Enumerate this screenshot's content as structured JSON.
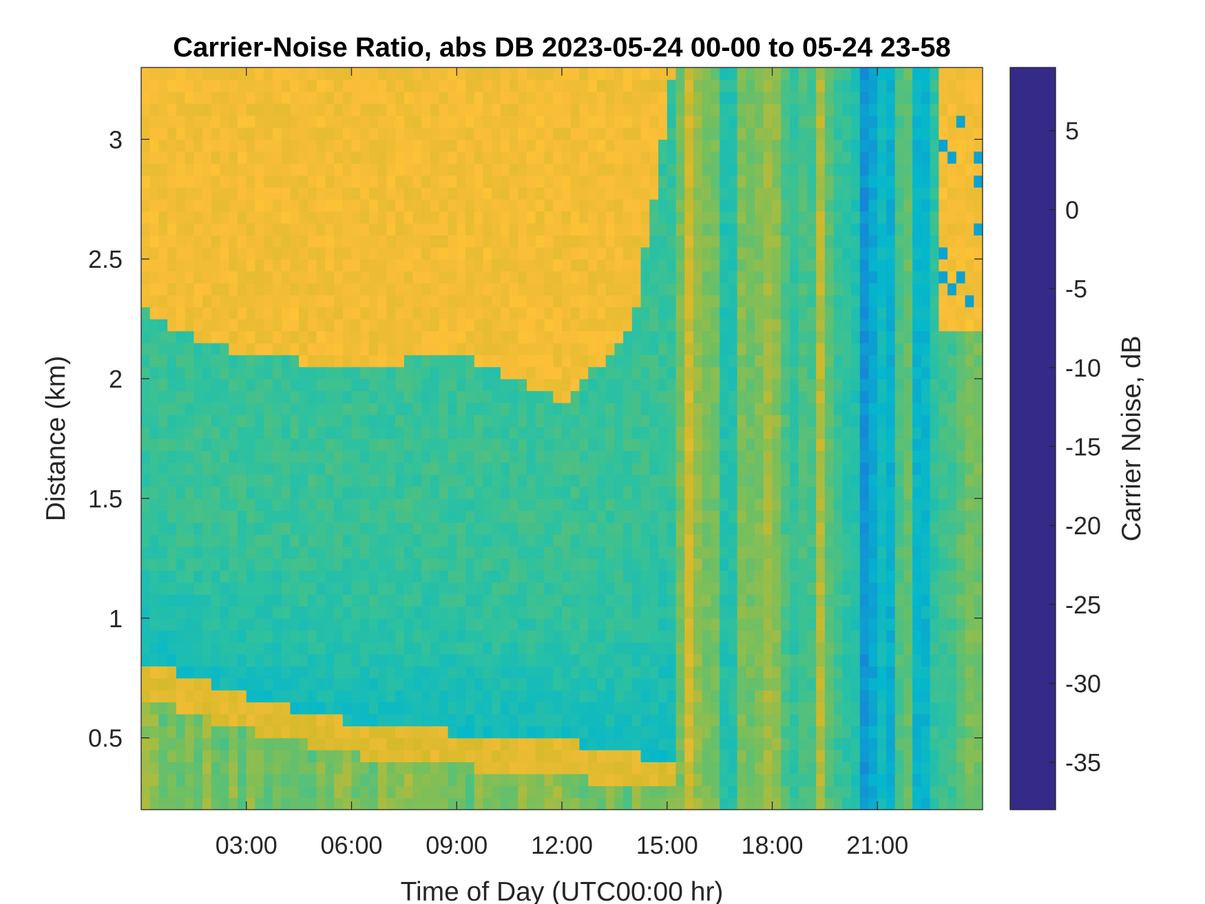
{
  "chart_data": {
    "type": "heatmap",
    "title": "Carrier-Noise Ratio, abs DB 2023-05-24 00-00 to 05-24 23-58",
    "xlabel": "Time of Day (UTC00:00 hr)",
    "ylabel": "Distance (km)",
    "colorbar_label": "Carrier Noise, dB",
    "x_range_hours": [
      0,
      24
    ],
    "xlim": [
      "00:00",
      "23:58"
    ],
    "ylim": [
      0.2,
      3.3
    ],
    "clim": [
      -38,
      9
    ],
    "x_ticks": [
      {
        "hour": 3,
        "label": "03:00"
      },
      {
        "hour": 6,
        "label": "06:00"
      },
      {
        "hour": 9,
        "label": "09:00"
      },
      {
        "hour": 12,
        "label": "12:00"
      },
      {
        "hour": 15,
        "label": "15:00"
      },
      {
        "hour": 18,
        "label": "18:00"
      },
      {
        "hour": 21,
        "label": "21:00"
      }
    ],
    "y_ticks": [
      {
        "value": 0.5,
        "label": "0.5"
      },
      {
        "value": 1,
        "label": "1"
      },
      {
        "value": 1.5,
        "label": "1.5"
      },
      {
        "value": 2,
        "label": "2"
      },
      {
        "value": 2.5,
        "label": "2.5"
      },
      {
        "value": 3,
        "label": "3"
      }
    ],
    "colorbar_ticks": [
      {
        "value": 5,
        "label": "5"
      },
      {
        "value": 0,
        "label": "0"
      },
      {
        "value": -5,
        "label": "-5"
      },
      {
        "value": -10,
        "label": "-10"
      },
      {
        "value": -15,
        "label": "-15"
      },
      {
        "value": -20,
        "label": "-20"
      },
      {
        "value": -25,
        "label": "-25"
      },
      {
        "value": -30,
        "label": "-30"
      },
      {
        "value": -35,
        "label": "-35"
      }
    ],
    "colormap": "parula (reversed: yellow = low, dark blue = high)",
    "colormap_stops": [
      {
        "value": 9,
        "color": "#352a87"
      },
      {
        "value": 1,
        "color": "#3f50e8"
      },
      {
        "value": -6,
        "color": "#1683d7"
      },
      {
        "value": -12,
        "color": "#05b7cc"
      },
      {
        "value": -17,
        "color": "#2ec19f"
      },
      {
        "value": -22,
        "color": "#76bf5d"
      },
      {
        "value": -27,
        "color": "#d1b92a"
      },
      {
        "value": -32,
        "color": "#fbbe38"
      },
      {
        "value": -38,
        "color": "#f9fb0e"
      }
    ],
    "grid": false,
    "field_approx": {
      "description_units": "hours (x), km (y), dB (value)",
      "upper_layer_top_km_by_hour": [
        [
          0,
          2.3
        ],
        [
          1,
          2.2
        ],
        [
          3,
          2.1
        ],
        [
          6,
          2.05
        ],
        [
          9,
          2.1
        ],
        [
          12,
          1.9
        ],
        [
          14,
          2.2
        ],
        [
          15.2,
          3.3
        ]
      ],
      "aerosol_band_km_by_hour": [
        [
          0,
          0.75
        ],
        [
          3,
          0.6
        ],
        [
          6,
          0.5
        ],
        [
          9,
          0.45
        ],
        [
          12,
          0.42
        ],
        [
          14.3,
          0.35
        ]
      ],
      "afternoon_mixed_from_hour": 15.2,
      "night_noise_from_hour": 22.7
    }
  }
}
